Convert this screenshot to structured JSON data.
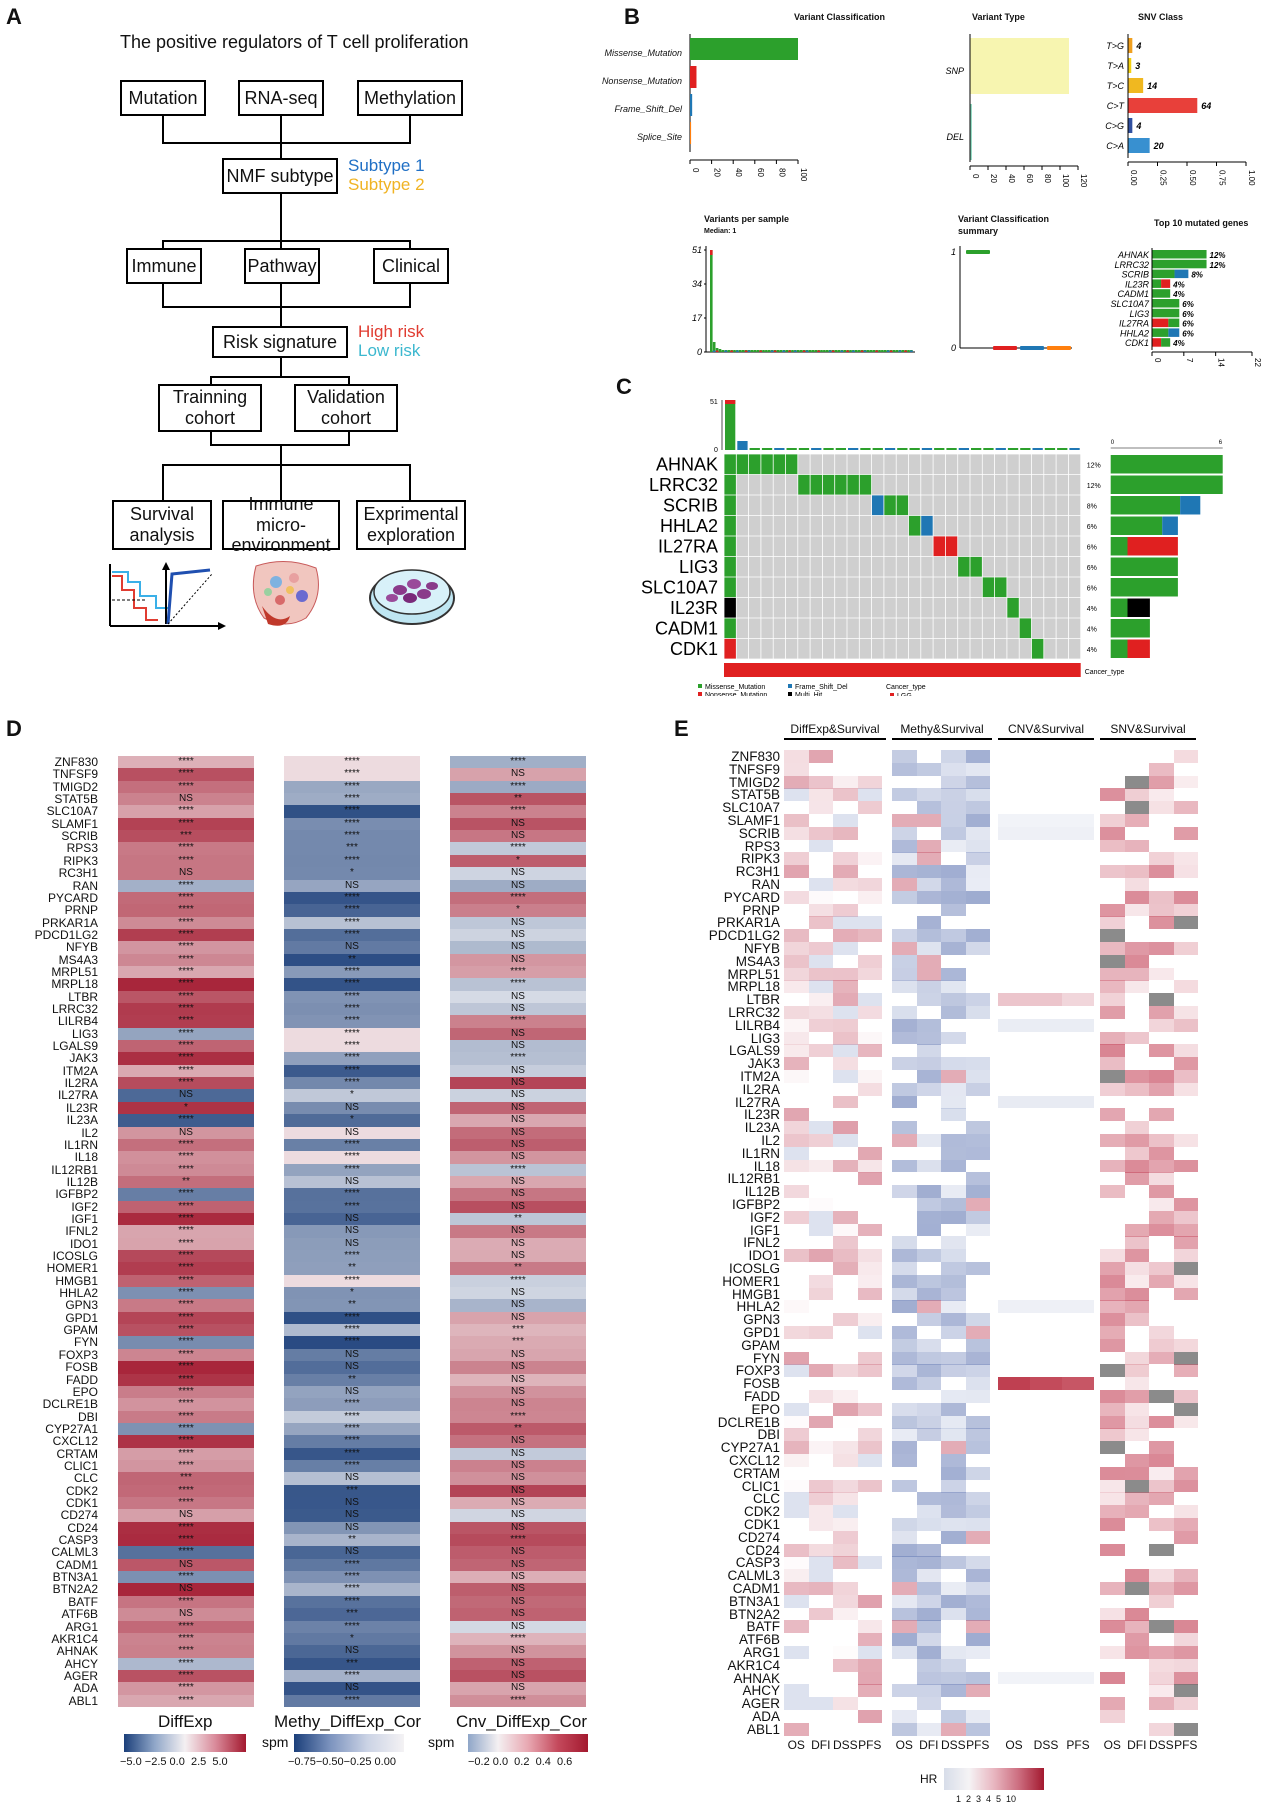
{
  "panels": {
    "A": "A",
    "B": "B",
    "C": "C",
    "D": "D",
    "E": "E"
  },
  "flow": {
    "title": "The positive regulators of T cell proliferation",
    "omics": [
      "Mutation",
      "RNA-seq",
      "Methylation"
    ],
    "nmf": "NMF subtype",
    "subtype1": "Subtype 1",
    "subtype2": "Subtype 2",
    "analyses": [
      "Immune",
      "Pathway",
      "Clinical"
    ],
    "risk": "Risk signature",
    "high": "High risk",
    "low": "Low risk",
    "cohort_a": "Trainning cohort",
    "cohort_b": "Validation cohort",
    "final": [
      "Survival analysis",
      "Immune micro-environment",
      "Exprimental exploration"
    ],
    "colors": {
      "subtype1": "#1f6fc5",
      "subtype2": "#f0b323",
      "high": "#e03c31",
      "low": "#3cb8cf"
    }
  },
  "mafsummary": {
    "vc_title": "Variant Classification",
    "vc_labels": [
      "Missense_Mutation",
      "Nonsense_Mutation",
      "Frame_Shift_Del",
      "Splice_Site"
    ],
    "vc_values": [
      100,
      6,
      2,
      1
    ],
    "vc_ticks": [
      "0",
      "20",
      "40",
      "60",
      "80",
      "100"
    ],
    "vt_title": "Variant Type",
    "vt_labels": [
      "SNP",
      "DEL"
    ],
    "vt_values": [
      110,
      2
    ],
    "vt_ticks": [
      "0",
      "20",
      "40",
      "60",
      "80",
      "100",
      "120"
    ],
    "snv_title": "SNV Class",
    "snv_labels": [
      "T>G",
      "T>A",
      "T>C",
      "C>T",
      "C>G",
      "C>A"
    ],
    "snv_values": [
      "4",
      "3",
      "14",
      "64",
      "4",
      "20"
    ],
    "snv_ticks": [
      "0.00",
      "0.25",
      "0.50",
      "0.75",
      "1.00"
    ],
    "vps_title": "Variants per sample",
    "vps_median": "Median: 1",
    "vps_ticks": [
      "51",
      "34",
      "17",
      "0"
    ],
    "vcs_title": "Variant Classification summary",
    "vcs_ticks": [
      "1",
      "0"
    ],
    "top_title": "Top 10 mutated genes",
    "top_genes": [
      "AHNAK",
      "LRRC32",
      "SCRIB",
      "IL23R",
      "CADM1",
      "SLC10A7",
      "LIG3",
      "IL27RA",
      "HHLA2",
      "CDK1"
    ],
    "top_pct": [
      "12%",
      "12%",
      "8%",
      "4%",
      "4%",
      "6%",
      "6%",
      "6%",
      "6%",
      "4%"
    ],
    "top_ticks": [
      "0",
      "7",
      "14",
      "22"
    ]
  },
  "oncoplot": {
    "genes": [
      "AHNAK",
      "LRRC32",
      "SCRIB",
      "HHLA2",
      "IL27RA",
      "LIG3",
      "SLC10A7",
      "IL23R",
      "CADM1",
      "CDK1"
    ],
    "pct": [
      "12%",
      "12%",
      "8%",
      "6%",
      "6%",
      "6%",
      "6%",
      "4%",
      "4%",
      "4%"
    ],
    "top_ticks": [
      "51",
      "0"
    ],
    "right_ticks": [
      "0",
      "6"
    ],
    "cancer_label": "Cancer_type",
    "legend": [
      "Missense_Mutation",
      "Nonsense_Mutation",
      "Frame_Shift_Del",
      "Multi_Hit"
    ],
    "cancer_legend_title": "Cancer_type",
    "cancer_legend_item": "LGG"
  },
  "panelD": {
    "genes": [
      "ZNF830",
      "TNFSF9",
      "TMIGD2",
      "STAT5B",
      "SLC10A7",
      "SLAMF1",
      "SCRIB",
      "RPS3",
      "RIPK3",
      "RC3H1",
      "RAN",
      "PYCARD",
      "PRNP",
      "PRKAR1A",
      "PDCD1LG2",
      "NFYB",
      "MS4A3",
      "MRPL51",
      "MRPL18",
      "LTBR",
      "LRRC32",
      "LILRB4",
      "LIG3",
      "LGALS9",
      "JAK3",
      "ITM2A",
      "IL2RA",
      "IL27RA",
      "IL23R",
      "IL23A",
      "IL2",
      "IL1RN",
      "IL18",
      "IL12RB1",
      "IL12B",
      "IGFBP2",
      "IGF2",
      "IGF1",
      "IFNL2",
      "IDO1",
      "ICOSLG",
      "HOMER1",
      "HMGB1",
      "HHLA2",
      "GPN3",
      "GPD1",
      "GPAM",
      "FYN",
      "FOXP3",
      "FOSB",
      "FADD",
      "EPO",
      "DCLRE1B",
      "DBI",
      "CYP27A1",
      "CXCL12",
      "CRTAM",
      "CLIC1",
      "CLC",
      "CDK2",
      "CDK1",
      "CD274",
      "CD24",
      "CASP3",
      "CALML3",
      "CADM1",
      "BTN3A1",
      "BTN2A2",
      "BATF",
      "ATF6B",
      "ARG1",
      "AKR1C4",
      "AHNAK",
      "AHCY",
      "AGER",
      "ADA",
      "ABL1"
    ],
    "sig1": [
      "****",
      "****",
      "****",
      "NS",
      "****",
      "****",
      "***",
      "****",
      "****",
      "NS",
      "****",
      "****",
      "****",
      "****",
      "****",
      "****",
      "****",
      "****",
      "****",
      "****",
      "****",
      "****",
      "****",
      "****",
      "****",
      "****",
      "****",
      "NS",
      "*",
      "****",
      "NS",
      "****",
      "****",
      "****",
      "**",
      "****",
      "****",
      "****",
      "****",
      "****",
      "****",
      "****",
      "****",
      "****",
      "****",
      "****",
      "****",
      "****",
      "****",
      "****",
      "****",
      "****",
      "****",
      "****",
      "****",
      "****",
      "****",
      "****",
      "***",
      "****",
      "****",
      "NS",
      "****",
      "****",
      "****",
      "NS",
      "****",
      "NS",
      "****",
      "NS",
      "****",
      "****",
      "****",
      "****",
      "****",
      "****",
      "****"
    ],
    "sig2": [
      "****",
      "****",
      "****",
      "****",
      "****",
      "****",
      "****",
      "***",
      "****",
      "*",
      "NS",
      "****",
      "****",
      "****",
      "****",
      "NS",
      "**",
      "****",
      "****",
      "****",
      "****",
      "****",
      "****",
      "****",
      "****",
      "****",
      "****",
      "*",
      "NS",
      "*",
      "NS",
      "****",
      "****",
      "****",
      "NS",
      "****",
      "****",
      "NS",
      "NS",
      "NS",
      "****",
      "**",
      "****",
      "*",
      "**",
      "****",
      "****",
      "****",
      "NS",
      "NS",
      "**",
      "NS",
      "****",
      "****",
      "****",
      "****",
      "****",
      "****",
      "NS",
      "***",
      "NS",
      "NS",
      "NS",
      "**",
      "NS",
      "****",
      "****",
      "****",
      "****",
      "***",
      "****",
      "*",
      "NS",
      "***",
      "****",
      "NS",
      "****"
    ],
    "sig3": [
      "****",
      "NS",
      "****",
      "**",
      "****",
      "NS",
      "NS",
      "****",
      "*",
      "NS",
      "NS",
      "****",
      "*",
      "NS",
      "NS",
      "NS",
      "NS",
      "****",
      "****",
      "NS",
      "NS",
      "****",
      "NS",
      "NS",
      "****",
      "NS",
      "NS",
      "NS",
      "NS",
      "NS",
      "NS",
      "NS",
      "NS",
      "****",
      "NS",
      "NS",
      "NS",
      "**",
      "NS",
      "NS",
      "NS",
      "**",
      "****",
      "NS",
      "NS",
      "NS",
      "***",
      "***",
      "NS",
      "NS",
      "NS",
      "NS",
      "NS",
      "****",
      "**",
      "NS",
      "NS",
      "NS",
      "NS",
      "NS",
      "NS",
      "NS",
      "NS",
      "****",
      "NS",
      "NS",
      "NS",
      "NS",
      "NS",
      "NS",
      "NS",
      "****",
      "NS",
      "NS",
      "NS",
      "NS",
      "****"
    ],
    "legend": {
      "diff": "DiffExp",
      "meth": "Methy_DiffExp_Cor",
      "cnv": "Cnv_DiffExp_Cor",
      "spm": "spm",
      "diff_ticks": "−5.0 −2.5 0.0  2.5  5.0",
      "meth_ticks": "−0.75−0.50−0.25 0.00",
      "cnv_ticks": "−0.2 0.0  0.2  0.4  0.6"
    }
  },
  "panelE": {
    "genes": [
      "ZNF830",
      "TNFSF9",
      "TMIGD2",
      "STAT5B",
      "SLC10A7",
      "SLAMF1",
      "SCRIB",
      "RPS3",
      "RIPK3",
      "RC3H1",
      "RAN",
      "PYCARD",
      "PRNP",
      "PRKAR1A",
      "PDCD1LG2",
      "NFYB",
      "MS4A3",
      "MRPL51",
      "MRPL18",
      "LTBR",
      "LRRC32",
      "LILRB4",
      "LIG3",
      "LGALS9",
      "JAK3",
      "ITM2A",
      "IL2RA",
      "IL27RA",
      "IL23R",
      "IL23A",
      "IL2",
      "IL1RN",
      "IL18",
      "IL12RB1",
      "IL12B",
      "IGFBP2",
      "IGF2",
      "IGF1",
      "IFNL2",
      "IDO1",
      "ICOSLG",
      "HOMER1",
      "HMGB1",
      "HHLA2",
      "GPN3",
      "GPD1",
      "GPAM",
      "FYN",
      "FOXP3",
      "FOSB",
      "FADD",
      "EPO",
      "DCLRE1B",
      "DBI",
      "CYP27A1",
      "CXCL12",
      "CRTAM",
      "CLIC1",
      "CLC",
      "CDK2",
      "CDK1",
      "CD274",
      "CD24",
      "CASP3",
      "CALML3",
      "CADM1",
      "BTN3A1",
      "BTN2A2",
      "BATF",
      "ATF6B",
      "ARG1",
      "AKR1C4",
      "AHNAK",
      "AHCY",
      "AGER",
      "ADA",
      "ABL1"
    ],
    "groups": [
      "DiffExp&Survival",
      "Methy&Survival",
      "CNV&Survival",
      "SNV&Survival"
    ],
    "cols_g1": [
      "OS",
      "DFI",
      "DSS",
      "PFS"
    ],
    "cols_g3": [
      "OS",
      "DSS",
      "PFS"
    ],
    "legend_title": "HR",
    "legend_ticks": "1  2  3  4  5  10"
  },
  "colors": {
    "missense": "#2ca02c",
    "nonsense": "#e02020",
    "frameshift": "#1f77b4",
    "splice": "#ff7f0e",
    "multihit": "#000000",
    "snp": "#f7f5b0",
    "del": "#7fd3b8",
    "grey": "#cfcfcf"
  }
}
